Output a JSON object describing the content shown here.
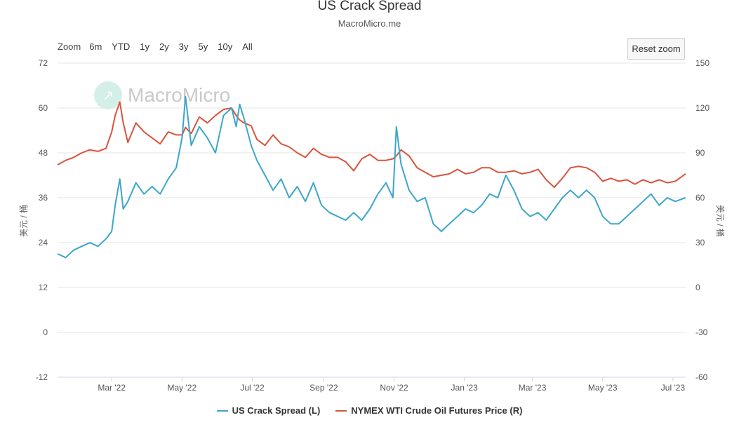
{
  "header": {
    "title": "US Crack Spread",
    "subtitle": "MacroMicro.me"
  },
  "zoom": {
    "label": "Zoom",
    "buttons": [
      "6m",
      "YTD",
      "1y",
      "2y",
      "3y",
      "5y",
      "10y",
      "All"
    ]
  },
  "reset_label": "Reset zoom",
  "watermark": {
    "text": "MacroMicro",
    "icon": "macromicro-logo-icon"
  },
  "colors": {
    "spread": "#3ba6c9",
    "wti": "#d9533b",
    "grid": "#e6e6e6"
  },
  "legend": [
    {
      "label": "US Crack Spread (L)",
      "color": "#3ba6c9"
    },
    {
      "label": "NYMEX WTI Crude Oil Futures Price (R)",
      "color": "#d9533b"
    }
  ],
  "chart_data": {
    "type": "line",
    "title": "US Crack Spread",
    "subtitle": "MacroMicro.me",
    "ylabel_left": "美元 / 桶",
    "ylabel_right": "美元 / 桶",
    "left_axis": {
      "min": -12,
      "max": 72,
      "ticks": [
        72,
        60,
        48,
        36,
        24,
        12,
        0,
        -12
      ]
    },
    "right_axis": {
      "min": -60,
      "max": 150,
      "ticks": [
        150,
        120,
        90,
        60,
        30,
        0,
        -30,
        -60
      ]
    },
    "x_ticks": [
      "Mar '22",
      "May '22",
      "Jul '22",
      "Sep '22",
      "Nov '22",
      "Jan '23",
      "Mar '23",
      "May '23",
      "Jul '23"
    ],
    "x_range": [
      "2022-01-13",
      "2023-07-12"
    ],
    "grid": true,
    "legend_position": "bottom-center",
    "series": [
      {
        "name": "US Crack Spread (L)",
        "axis": "left",
        "points": [
          [
            "2022-01-13",
            21
          ],
          [
            "2022-01-20",
            20
          ],
          [
            "2022-01-27",
            22
          ],
          [
            "2022-02-03",
            23
          ],
          [
            "2022-02-10",
            24
          ],
          [
            "2022-02-17",
            23
          ],
          [
            "2022-02-24",
            25
          ],
          [
            "2022-03-01",
            27
          ],
          [
            "2022-03-04",
            34
          ],
          [
            "2022-03-08",
            41
          ],
          [
            "2022-03-11",
            33
          ],
          [
            "2022-03-15",
            35
          ],
          [
            "2022-03-22",
            40
          ],
          [
            "2022-03-29",
            37
          ],
          [
            "2022-04-05",
            39
          ],
          [
            "2022-04-12",
            37
          ],
          [
            "2022-04-19",
            41
          ],
          [
            "2022-04-26",
            44
          ],
          [
            "2022-05-01",
            52
          ],
          [
            "2022-05-04",
            63
          ],
          [
            "2022-05-09",
            50
          ],
          [
            "2022-05-16",
            55
          ],
          [
            "2022-05-23",
            52
          ],
          [
            "2022-05-30",
            48
          ],
          [
            "2022-06-06",
            58
          ],
          [
            "2022-06-13",
            60
          ],
          [
            "2022-06-17",
            55
          ],
          [
            "2022-06-20",
            61
          ],
          [
            "2022-06-24",
            57
          ],
          [
            "2022-06-30",
            50
          ],
          [
            "2022-07-05",
            46
          ],
          [
            "2022-07-12",
            42
          ],
          [
            "2022-07-19",
            38
          ],
          [
            "2022-07-26",
            41
          ],
          [
            "2022-08-02",
            36
          ],
          [
            "2022-08-09",
            39
          ],
          [
            "2022-08-16",
            35
          ],
          [
            "2022-08-23",
            40
          ],
          [
            "2022-08-30",
            34
          ],
          [
            "2022-09-06",
            32
          ],
          [
            "2022-09-13",
            31
          ],
          [
            "2022-09-20",
            30
          ],
          [
            "2022-09-27",
            32
          ],
          [
            "2022-10-04",
            30
          ],
          [
            "2022-10-11",
            33
          ],
          [
            "2022-10-18",
            37
          ],
          [
            "2022-10-25",
            40
          ],
          [
            "2022-10-31",
            36
          ],
          [
            "2022-11-03",
            55
          ],
          [
            "2022-11-07",
            45
          ],
          [
            "2022-11-14",
            38
          ],
          [
            "2022-11-21",
            35
          ],
          [
            "2022-11-28",
            36
          ],
          [
            "2022-12-05",
            29
          ],
          [
            "2022-12-12",
            27
          ],
          [
            "2022-12-19",
            29
          ],
          [
            "2022-12-26",
            31
          ],
          [
            "2023-01-02",
            33
          ],
          [
            "2023-01-09",
            32
          ],
          [
            "2023-01-16",
            34
          ],
          [
            "2023-01-23",
            37
          ],
          [
            "2023-01-30",
            36
          ],
          [
            "2023-02-06",
            42
          ],
          [
            "2023-02-13",
            38
          ],
          [
            "2023-02-20",
            33
          ],
          [
            "2023-02-27",
            31
          ],
          [
            "2023-03-06",
            32
          ],
          [
            "2023-03-13",
            30
          ],
          [
            "2023-03-20",
            33
          ],
          [
            "2023-03-27",
            36
          ],
          [
            "2023-04-03",
            38
          ],
          [
            "2023-04-10",
            36
          ],
          [
            "2023-04-17",
            38
          ],
          [
            "2023-04-24",
            36
          ],
          [
            "2023-05-01",
            31
          ],
          [
            "2023-05-08",
            29
          ],
          [
            "2023-05-15",
            29
          ],
          [
            "2023-05-22",
            31
          ],
          [
            "2023-05-29",
            33
          ],
          [
            "2023-06-05",
            35
          ],
          [
            "2023-06-12",
            37
          ],
          [
            "2023-06-19",
            34
          ],
          [
            "2023-06-26",
            36
          ],
          [
            "2023-07-03",
            35
          ],
          [
            "2023-07-12",
            36
          ]
        ]
      },
      {
        "name": "NYMEX WTI Crude Oil Futures Price (R)",
        "axis": "right",
        "points": [
          [
            "2022-01-13",
            82
          ],
          [
            "2022-01-20",
            85
          ],
          [
            "2022-01-27",
            87
          ],
          [
            "2022-02-03",
            90
          ],
          [
            "2022-02-10",
            92
          ],
          [
            "2022-02-17",
            91
          ],
          [
            "2022-02-24",
            93
          ],
          [
            "2022-03-01",
            104
          ],
          [
            "2022-03-04",
            115
          ],
          [
            "2022-03-08",
            124
          ],
          [
            "2022-03-11",
            110
          ],
          [
            "2022-03-15",
            97
          ],
          [
            "2022-03-22",
            110
          ],
          [
            "2022-03-29",
            104
          ],
          [
            "2022-04-05",
            100
          ],
          [
            "2022-04-12",
            96
          ],
          [
            "2022-04-19",
            104
          ],
          [
            "2022-04-26",
            102
          ],
          [
            "2022-05-01",
            102
          ],
          [
            "2022-05-04",
            107
          ],
          [
            "2022-05-09",
            103
          ],
          [
            "2022-05-16",
            114
          ],
          [
            "2022-05-23",
            110
          ],
          [
            "2022-05-30",
            115
          ],
          [
            "2022-06-06",
            119
          ],
          [
            "2022-06-13",
            120
          ],
          [
            "2022-06-17",
            115
          ],
          [
            "2022-06-20",
            112
          ],
          [
            "2022-06-24",
            110
          ],
          [
            "2022-06-30",
            108
          ],
          [
            "2022-07-05",
            99
          ],
          [
            "2022-07-12",
            95
          ],
          [
            "2022-07-19",
            102
          ],
          [
            "2022-07-26",
            96
          ],
          [
            "2022-08-02",
            94
          ],
          [
            "2022-08-09",
            90
          ],
          [
            "2022-08-16",
            87
          ],
          [
            "2022-08-23",
            93
          ],
          [
            "2022-08-30",
            89
          ],
          [
            "2022-09-06",
            87
          ],
          [
            "2022-09-13",
            87
          ],
          [
            "2022-09-20",
            84
          ],
          [
            "2022-09-27",
            78
          ],
          [
            "2022-10-04",
            86
          ],
          [
            "2022-10-11",
            89
          ],
          [
            "2022-10-18",
            85
          ],
          [
            "2022-10-25",
            85
          ],
          [
            "2022-10-31",
            86
          ],
          [
            "2022-11-03",
            88
          ],
          [
            "2022-11-07",
            92
          ],
          [
            "2022-11-14",
            88
          ],
          [
            "2022-11-21",
            80
          ],
          [
            "2022-11-28",
            77
          ],
          [
            "2022-12-05",
            74
          ],
          [
            "2022-12-12",
            75
          ],
          [
            "2022-12-19",
            76
          ],
          [
            "2022-12-26",
            79
          ],
          [
            "2023-01-02",
            76
          ],
          [
            "2023-01-09",
            77
          ],
          [
            "2023-01-16",
            80
          ],
          [
            "2023-01-23",
            80
          ],
          [
            "2023-01-30",
            77
          ],
          [
            "2023-02-06",
            77
          ],
          [
            "2023-02-13",
            78
          ],
          [
            "2023-02-20",
            76
          ],
          [
            "2023-02-27",
            77
          ],
          [
            "2023-03-06",
            79
          ],
          [
            "2023-03-13",
            72
          ],
          [
            "2023-03-20",
            67
          ],
          [
            "2023-03-27",
            73
          ],
          [
            "2023-04-03",
            80
          ],
          [
            "2023-04-10",
            81
          ],
          [
            "2023-04-17",
            80
          ],
          [
            "2023-04-24",
            77
          ],
          [
            "2023-05-01",
            71
          ],
          [
            "2023-05-08",
            73
          ],
          [
            "2023-05-15",
            71
          ],
          [
            "2023-05-22",
            72
          ],
          [
            "2023-05-29",
            69
          ],
          [
            "2023-06-05",
            72
          ],
          [
            "2023-06-12",
            70
          ],
          [
            "2023-06-19",
            72
          ],
          [
            "2023-06-26",
            70
          ],
          [
            "2023-07-03",
            71
          ],
          [
            "2023-07-12",
            76
          ]
        ]
      }
    ]
  }
}
